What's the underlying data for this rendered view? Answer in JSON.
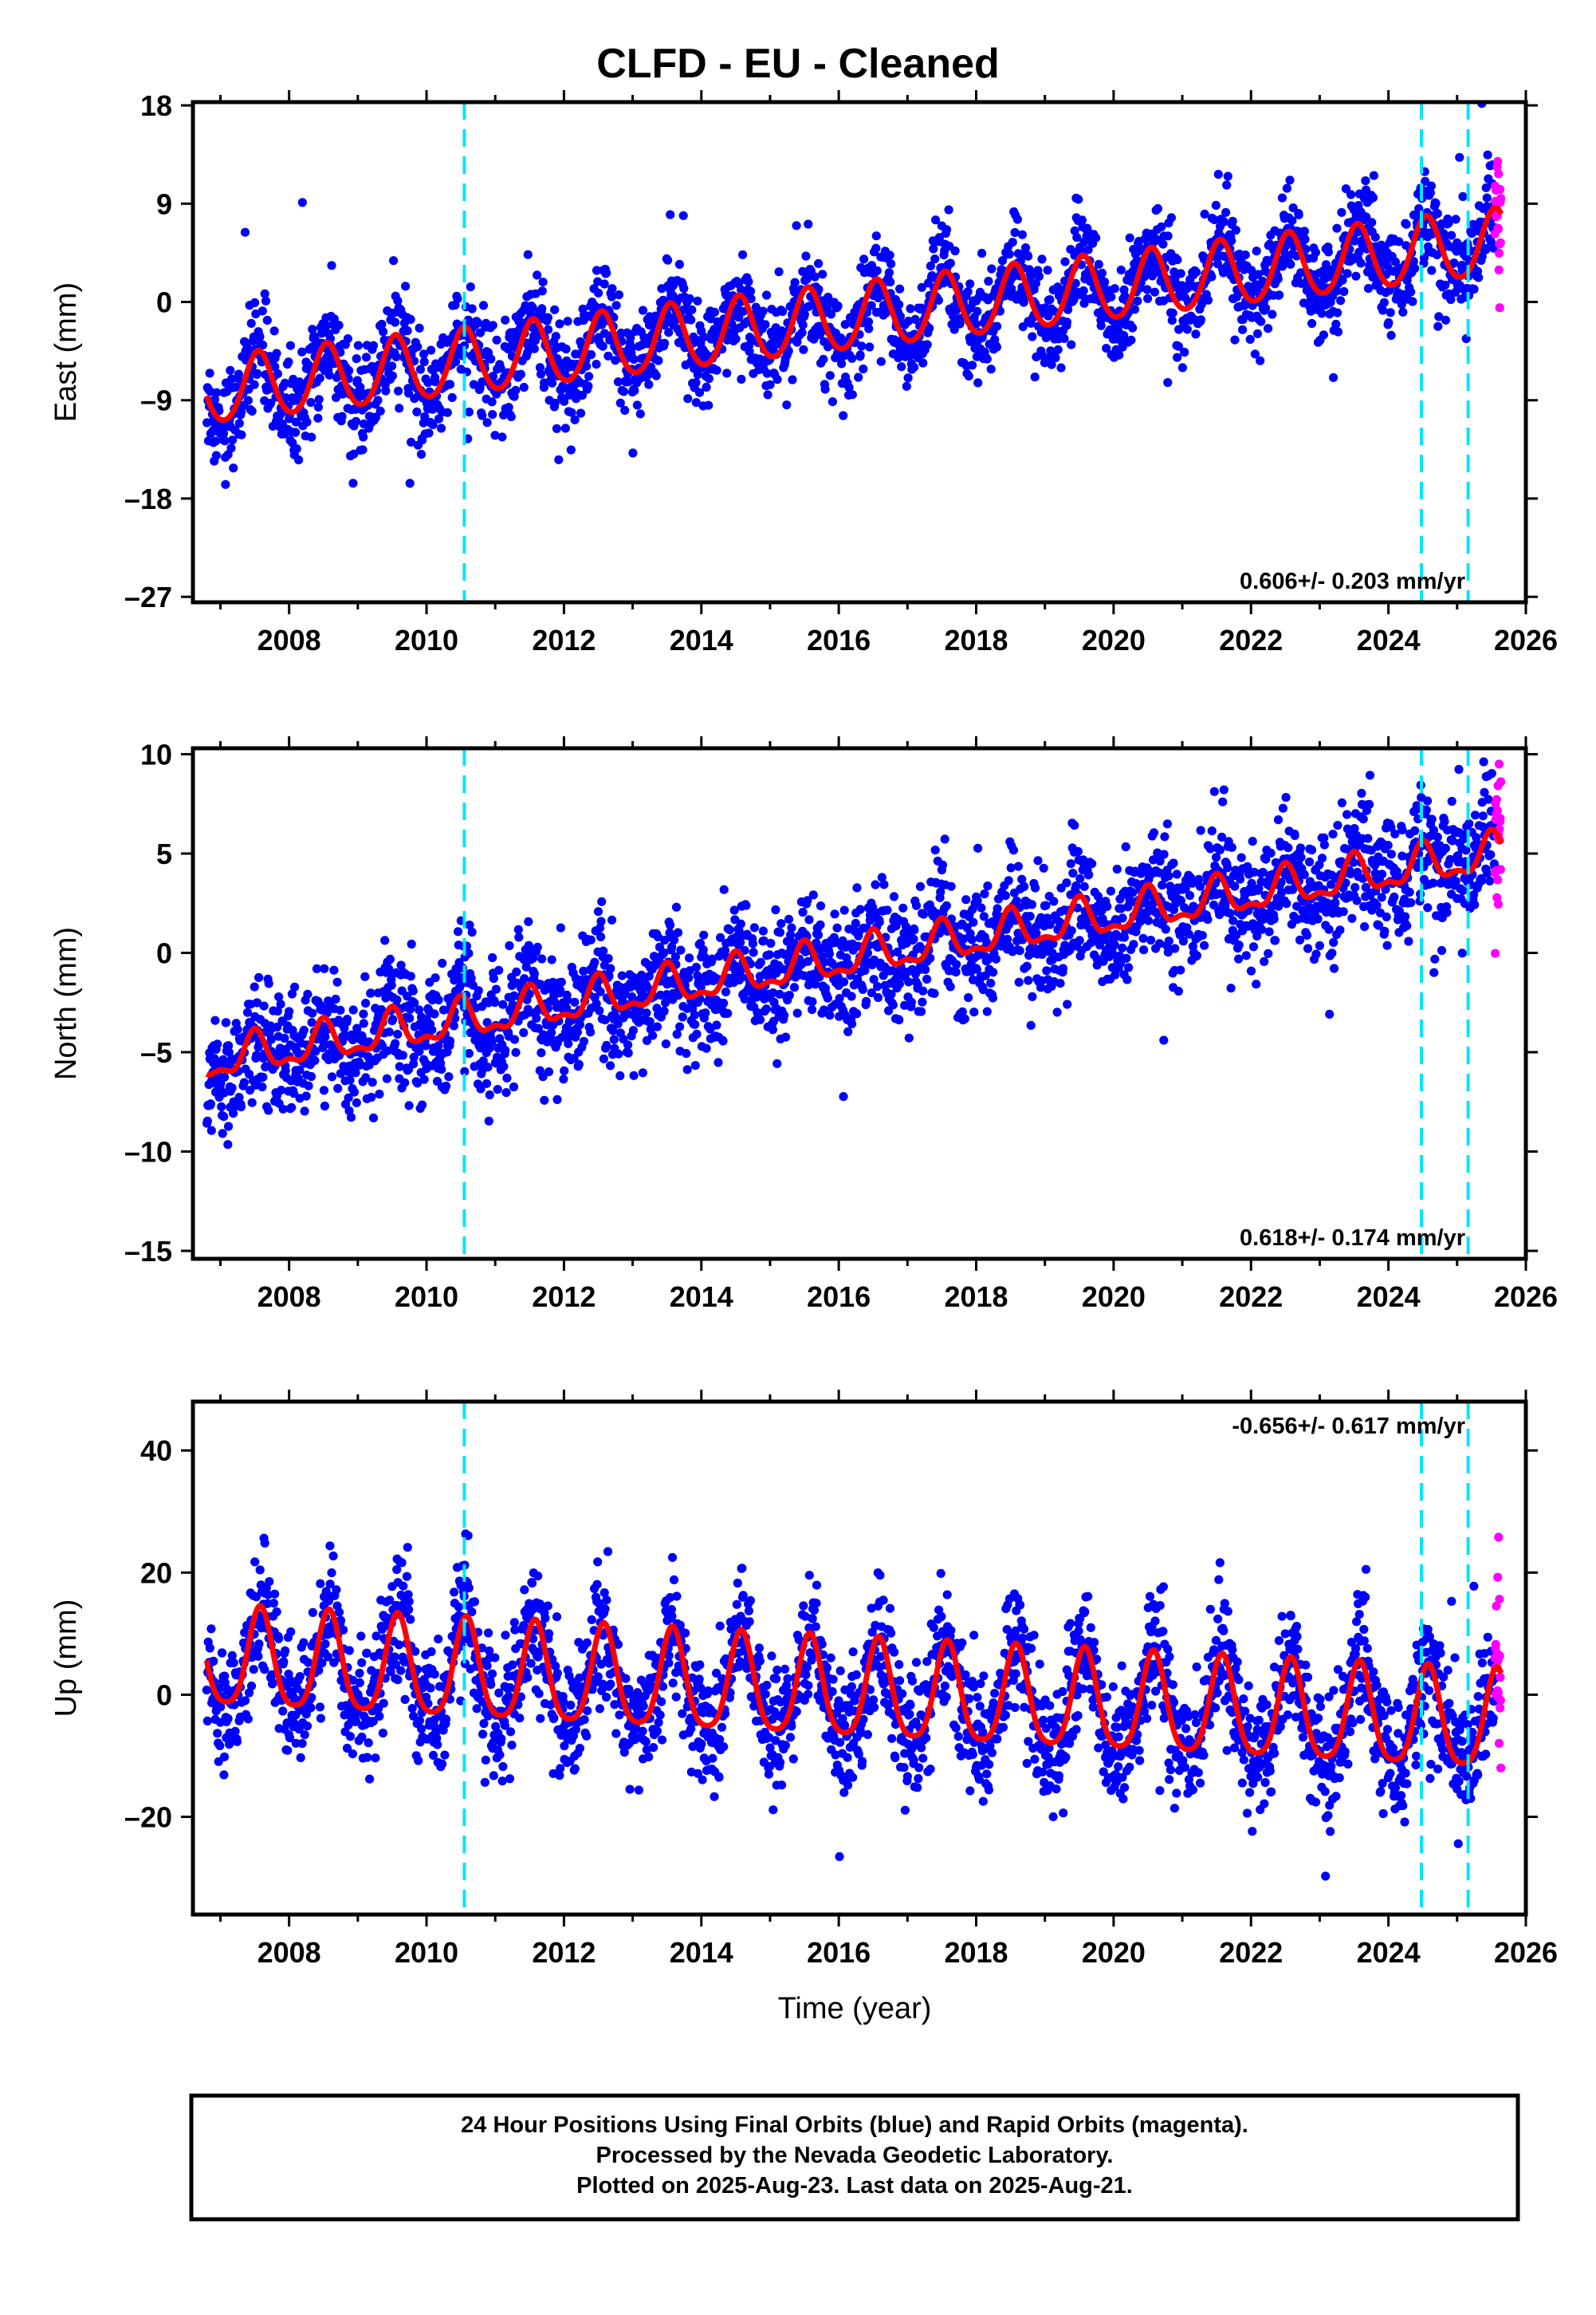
{
  "figure": {
    "title": "CLFD  - EU - Cleaned",
    "xlabel": "Time (year)",
    "footer": [
      "24 Hour Positions Using Final Orbits (blue) and Rapid Orbits (magenta).",
      "Processed by the Nevada Geodetic Laboratory.",
      "Plotted on 2025-Aug-23. Last data on 2025-Aug-21."
    ],
    "colors": {
      "final_orbits": "#0000ff",
      "rapid_orbits": "#ff00ff",
      "model_fit": "#ff0000",
      "equipment_change": "#00e5ff",
      "frame": "#000000"
    }
  },
  "chart_data": [
    {
      "type": "scatter",
      "component": "east",
      "ylabel": "East (mm)",
      "xlim": [
        2006.6,
        2026.0
      ],
      "ylim": [
        -27.5,
        18.3
      ],
      "x_ticks": [
        "2008",
        "2010",
        "2012",
        "2014",
        "2016",
        "2018",
        "2020",
        "2022",
        "2024",
        "2026"
      ],
      "y_ticks": [
        "18",
        "9",
        "0",
        "-9",
        "-18",
        "-27"
      ],
      "y_tick_values": [
        18,
        9,
        0,
        -9,
        -18,
        -27
      ],
      "rate": "0.606+/- 0.203 mm/yr",
      "rate_position": "bottom-right",
      "data_start": 2006.8,
      "data_end": 2025.64,
      "rapid_start": 2025.55,
      "model": {
        "trend_start": -8.3,
        "trend_end": 5.4,
        "annual_amplitude": 3.0,
        "annual_peak": 0.55,
        "semiannual_amplitude": 0.3
      },
      "scatter_sd": 2.3,
      "breaks": [
        2010.55,
        2024.48,
        2025.16
      ],
      "series": [
        {
          "name": "Final Orbits (blue)",
          "color": "#0000ff"
        },
        {
          "name": "Rapid Orbits (magenta)",
          "color": "#ff00ff"
        }
      ]
    },
    {
      "type": "scatter",
      "component": "north",
      "ylabel": "North (mm)",
      "xlim": [
        2006.6,
        2026.0
      ],
      "ylim": [
        -15.4,
        10.3
      ],
      "x_ticks": [
        "2008",
        "2010",
        "2012",
        "2014",
        "2016",
        "2018",
        "2020",
        "2022",
        "2024",
        "2026"
      ],
      "y_ticks": [
        "10",
        "5",
        "0",
        "-5",
        "-10",
        "-15"
      ],
      "y_tick_values": [
        10,
        5,
        0,
        -5,
        -10,
        -15
      ],
      "rate": "0.618+/- 0.174 mm/yr",
      "rate_position": "bottom-right",
      "data_start": 2006.8,
      "data_end": 2025.64,
      "rapid_start": 2025.55,
      "model": {
        "trend_start": -5.5,
        "trend_end": 5.0,
        "annual_amplitude": 0.9,
        "annual_peak": 0.5,
        "semiannual_amplitude": 0.4
      },
      "scatter_sd": 1.6,
      "breaks": [
        2010.55,
        2024.48,
        2025.16
      ],
      "series": [
        {
          "name": "Final Orbits (blue)",
          "color": "#0000ff"
        },
        {
          "name": "Rapid Orbits (magenta)",
          "color": "#ff00ff"
        }
      ]
    },
    {
      "type": "scatter",
      "component": "up",
      "ylabel": "Up (mm)",
      "xlim": [
        2006.6,
        2026.0
      ],
      "ylim": [
        -36,
        48
      ],
      "x_ticks": [
        "2008",
        "2010",
        "2012",
        "2014",
        "2016",
        "2018",
        "2020",
        "2022",
        "2024",
        "2026"
      ],
      "y_ticks": [
        "40",
        "20",
        "0",
        "-20"
      ],
      "y_tick_values": [
        40,
        20,
        0,
        -20
      ],
      "rate": "-0.656+/- 0.617 mm/yr",
      "rate_position": "top-right",
      "data_start": 2006.8,
      "data_end": 2025.64,
      "rapid_start": 2025.55,
      "model": {
        "trend_start": 5.5,
        "trend_end": -5.0,
        "annual_amplitude": 8.0,
        "annual_peak": 0.58,
        "semiannual_amplitude": 1.5
      },
      "scatter_sd": 5.2,
      "breaks": [
        2010.55,
        2024.48,
        2025.16
      ],
      "series": [
        {
          "name": "Final Orbits (blue)",
          "color": "#0000ff"
        },
        {
          "name": "Rapid Orbits (magenta)",
          "color": "#ff00ff"
        }
      ]
    }
  ]
}
